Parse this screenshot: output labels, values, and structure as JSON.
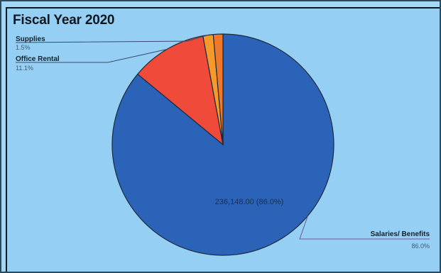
{
  "chart_data": {
    "type": "pie",
    "title": "Fiscal Year 2020",
    "slices": [
      {
        "name": "Salaries/ Benefits",
        "percent_label": "86.0%",
        "value": 86.0,
        "color": "#2b63b8"
      },
      {
        "name": "Office Rental",
        "percent_label": "11.1%",
        "value": 11.1,
        "color": "#f04a3a"
      },
      {
        "name": "Supplies",
        "percent_label": "1.5%",
        "value": 1.5,
        "color": "#f59a2a"
      },
      {
        "name": "",
        "percent_label": "",
        "value": 1.4,
        "color": "#f0782a"
      }
    ],
    "inside_label": "236,148.00 (86.0%)"
  }
}
